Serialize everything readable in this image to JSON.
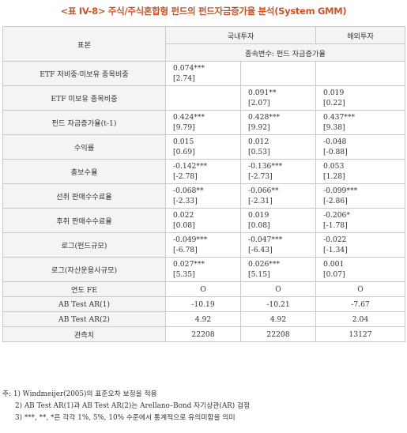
{
  "title": "<표 IV-8> 주식/주식혼합형 펀드의 펀드자금증가율 분석(System GMM)",
  "header": {
    "sample": "표본",
    "domestic": "국내투자",
    "foreign": "해외투자",
    "dependent": "종속변수: 펀드 자금증가율"
  },
  "rows": [
    {
      "label": "ETF 저비중·미보유 종목비중",
      "c1": [
        "0.074***",
        "[2.74]"
      ],
      "c2": [
        "",
        ""
      ],
      "c3": [
        "",
        ""
      ]
    },
    {
      "label": "ETF 미보유 종목비중",
      "c1": [
        "",
        ""
      ],
      "c2": [
        "0.091**",
        "[2.07]"
      ],
      "c3": [
        "0.019",
        "[0.22]"
      ]
    },
    {
      "label": "펀드 자금증가율(t-1)",
      "c1": [
        "0.424***",
        "[9.79]"
      ],
      "c2": [
        "0.428***",
        "[9.92]"
      ],
      "c3": [
        "0.437***",
        "[9.38]"
      ]
    },
    {
      "label": "수익률",
      "c1": [
        "0.015",
        "[0.69]"
      ],
      "c2": [
        "0.012",
        "[0.53]"
      ],
      "c3": [
        "-0.048",
        "[-0.88]"
      ]
    },
    {
      "label": "총보수율",
      "c1": [
        "-0.142***",
        "[-2.78]"
      ],
      "c2": [
        "-0.136***",
        "[-2.73]"
      ],
      "c3": [
        "0.053",
        "[1.28]"
      ]
    },
    {
      "label": "선취 판매수수료율",
      "c1": [
        "-0.068**",
        "[-2.33]"
      ],
      "c2": [
        "-0.066**",
        "[-2.31]"
      ],
      "c3": [
        "-0.099***",
        "[-2.86]"
      ]
    },
    {
      "label": "후취 판매수수료율",
      "c1": [
        "0.022",
        "[0.08]"
      ],
      "c2": [
        "0.019",
        "[0.08]"
      ],
      "c3": [
        "-0.206*",
        "[-1.78]"
      ]
    },
    {
      "label": "로그(펀드규모)",
      "c1": [
        "-0.049***",
        "[-6.78]"
      ],
      "c2": [
        "-0.047***",
        "[-6.43]"
      ],
      "c3": [
        "-0.022",
        "[-1.34]"
      ]
    },
    {
      "label": "로그(자산운용사규모)",
      "c1": [
        "0.027***",
        "[5.35]"
      ],
      "c2": [
        "0.026***",
        "[5.15]"
      ],
      "c3": [
        "0.001",
        "[0.07]"
      ]
    }
  ],
  "stats": [
    {
      "label": "연도 FE",
      "c1": "O",
      "c2": "O",
      "c3": "O"
    },
    {
      "label": "AB Test AR(1)",
      "c1": "-10.19",
      "c2": "-10.21",
      "c3": "-7.67"
    },
    {
      "label": "AB Test AR(2)",
      "c1": "4.92",
      "c2": "4.92",
      "c3": "2.04"
    },
    {
      "label": "관측치",
      "c1": "22208",
      "c2": "22208",
      "c3": "13127"
    }
  ],
  "notes": [
    "주: 1) Windmeijer(2005)의 표준오차 보정을 적용",
    "2) AB Test AR(1)과 AB Test AR(2)는 Arellano–Bond 자기상관(AR) 검정",
    "3) ***, **, *은 각각 1%, 5%, 10% 수준에서 통계적으로 유의미함을 의미"
  ]
}
